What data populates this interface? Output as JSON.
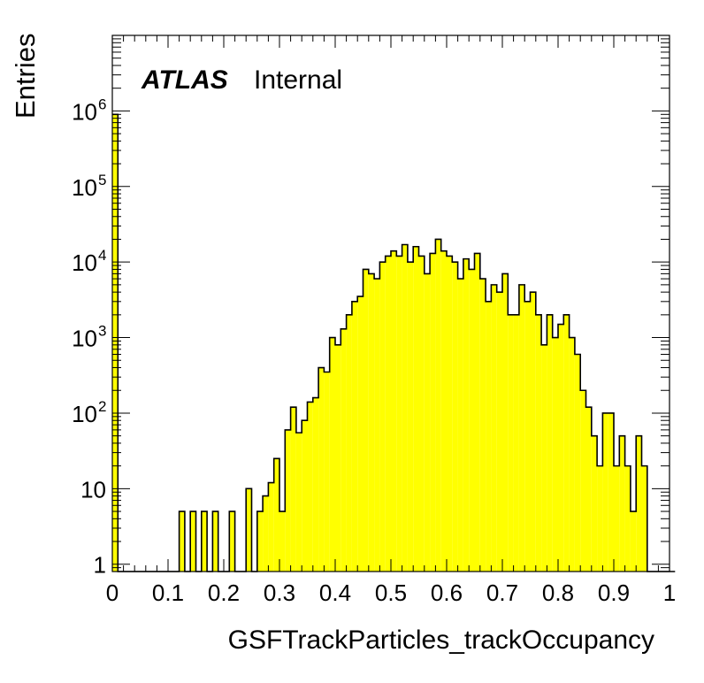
{
  "chart_data": {
    "type": "bar",
    "subtype": "histogram",
    "ylabel": "Entries",
    "xlabel": "GSFTrackParticles_trackOccupancy",
    "label_bold": "ATLAS",
    "label_text": "Internal",
    "yscale": "log",
    "xlim": [
      0,
      1
    ],
    "ylim": [
      0.8,
      10000000
    ],
    "x_ticks": [
      "0",
      "0.1",
      "0.2",
      "0.3",
      "0.4",
      "0.5",
      "0.6",
      "0.7",
      "0.8",
      "0.9",
      "1"
    ],
    "y_ticks": [
      {
        "value": 1,
        "base": "1",
        "exp": ""
      },
      {
        "value": 10,
        "base": "10",
        "exp": ""
      },
      {
        "value": 100,
        "base": "10",
        "exp": "2"
      },
      {
        "value": 1000,
        "base": "10",
        "exp": "3"
      },
      {
        "value": 10000,
        "base": "10",
        "exp": "4"
      },
      {
        "value": 100000,
        "base": "10",
        "exp": "5"
      },
      {
        "value": 1000000,
        "base": "10",
        "exp": "6"
      }
    ],
    "bin_width": 0.01,
    "bin_start": 0,
    "values": [
      900000,
      0,
      0,
      0,
      0,
      0,
      0,
      0,
      0,
      0,
      0,
      0,
      5,
      0,
      5,
      0,
      5,
      0,
      5,
      0,
      0,
      5,
      0,
      0,
      10,
      0,
      5,
      8,
      12,
      25,
      5,
      60,
      120,
      55,
      80,
      140,
      160,
      400,
      350,
      1000,
      800,
      1300,
      2000,
      3000,
      3500,
      8000,
      7000,
      6000,
      10000,
      12000,
      14000,
      12000,
      17000,
      10000,
      16000,
      12000,
      7000,
      13000,
      20000,
      14000,
      12000,
      10000,
      6000,
      11000,
      8000,
      13000,
      6000,
      3000,
      5000,
      4000,
      7000,
      2000,
      2000,
      5000,
      3000,
      4000,
      2000,
      800,
      2000,
      1000,
      1500,
      2000,
      1000,
      600,
      200,
      120,
      50,
      20,
      100,
      100,
      20,
      50,
      20,
      5,
      50,
      20,
      0,
      0,
      0,
      0,
      0
    ],
    "fill_color": "#ffff00",
    "line_color": "#000000"
  }
}
